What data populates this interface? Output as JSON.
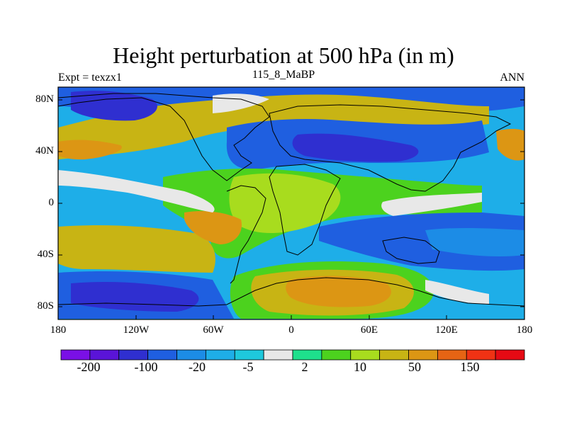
{
  "title": "Height perturbation at 500 hPa (in m)",
  "subtitle_left": "Expt = texzx1",
  "subtitle_center": "115_8_MaBP",
  "subtitle_right": "ANN",
  "lat_ticks": [
    "80N",
    "40N",
    "0",
    "40S",
    "80S"
  ],
  "lon_ticks": [
    "180",
    "120W",
    "60W",
    "0",
    "60E",
    "120E",
    "180"
  ],
  "colorbar": {
    "colors": [
      "#7a10e6",
      "#5a14d8",
      "#2f2fd0",
      "#1f5fe0",
      "#1c8ce6",
      "#1eaee8",
      "#1ec8dc",
      "#e8e8e8",
      "#1ee08c",
      "#4cd21e",
      "#a8dc1e",
      "#c8b414",
      "#dc9614",
      "#e66414",
      "#f03214",
      "#e60a14"
    ],
    "labels": [
      "-200",
      "-100",
      "-20",
      "-5",
      "2",
      "10",
      "50",
      "150"
    ]
  },
  "map_data": {
    "type": "filled-contour",
    "variable": "Height perturbation at 500 hPa",
    "units": "m",
    "lon_range": [
      -180,
      180
    ],
    "lat_range": [
      -90,
      90
    ]
  }
}
